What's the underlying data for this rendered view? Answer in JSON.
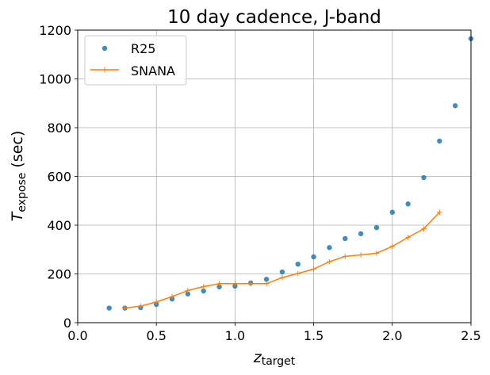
{
  "chart_data": {
    "type": "scatter",
    "title": "10 day cadence, J-band",
    "xlabel_main": "z",
    "xlabel_sub": "target",
    "ylabel_main": "T",
    "ylabel_sub": "expose",
    "ylabel_unit": " (sec)",
    "xlim": [
      0.0,
      2.5
    ],
    "ylim": [
      0,
      1200
    ],
    "xticks": [
      "0.0",
      "0.5",
      "1.0",
      "1.5",
      "2.0",
      "2.5"
    ],
    "yticks": [
      "0",
      "200",
      "400",
      "600",
      "800",
      "1000",
      "1200"
    ],
    "grid": true,
    "legend_position": "top-left",
    "series": [
      {
        "name": "R25",
        "style": "markers",
        "color": "#1f77b4",
        "x": [
          0.2,
          0.3,
          0.4,
          0.5,
          0.6,
          0.7,
          0.8,
          0.9,
          1.0,
          1.1,
          1.2,
          1.3,
          1.4,
          1.5,
          1.6,
          1.7,
          1.8,
          1.9,
          2.0,
          2.1,
          2.2,
          2.3,
          2.4,
          2.5
        ],
        "y": [
          60,
          60,
          62,
          75,
          97,
          118,
          130,
          147,
          150,
          163,
          178,
          208,
          240,
          270,
          308,
          345,
          365,
          390,
          453,
          487,
          595,
          745,
          890,
          1165
        ]
      },
      {
        "name": "SNANA",
        "style": "line-plus",
        "color": "#ff7f0e",
        "x": [
          0.3,
          0.4,
          0.5,
          0.6,
          0.7,
          0.8,
          0.9,
          1.0,
          1.1,
          1.2,
          1.3,
          1.4,
          1.5,
          1.6,
          1.7,
          1.8,
          1.9,
          2.0,
          2.1,
          2.2,
          2.3
        ],
        "y": [
          60,
          68,
          85,
          107,
          132,
          148,
          160,
          160,
          160,
          160,
          185,
          202,
          220,
          250,
          272,
          278,
          285,
          313,
          350,
          385,
          453
        ]
      }
    ]
  }
}
